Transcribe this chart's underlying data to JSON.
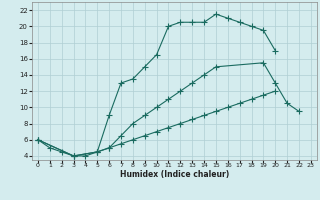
{
  "xlabel": "Humidex (Indice chaleur)",
  "bg_color": "#d4ecee",
  "grid_color": "#b0cfd3",
  "line_color": "#1a6b60",
  "xlim": [
    -0.5,
    23.5
  ],
  "ylim": [
    3.5,
    23
  ],
  "xticks": [
    0,
    1,
    2,
    3,
    4,
    5,
    6,
    7,
    8,
    9,
    10,
    11,
    12,
    13,
    14,
    15,
    16,
    17,
    18,
    19,
    20,
    21,
    22,
    23
  ],
  "yticks": [
    4,
    6,
    8,
    10,
    12,
    14,
    16,
    18,
    20,
    22
  ],
  "curve1_x": [
    0,
    1,
    2,
    3,
    4,
    5,
    6,
    7,
    8,
    9,
    10,
    11,
    12,
    13,
    14,
    15,
    16,
    17,
    18,
    19,
    20
  ],
  "curve1_y": [
    6,
    5,
    4.5,
    4,
    4,
    4.5,
    9,
    13,
    13.5,
    15,
    16.5,
    20,
    20.5,
    20.5,
    20.5,
    21.5,
    21,
    20.5,
    20,
    19.5,
    17
  ],
  "curve2_x": [
    0,
    3,
    5,
    6,
    7,
    8,
    9,
    10,
    11,
    12,
    13,
    14,
    15,
    19,
    20,
    21,
    22
  ],
  "curve2_y": [
    6,
    4,
    4.5,
    5,
    6.5,
    8,
    9,
    10,
    11,
    12,
    13,
    14,
    15,
    15.5,
    13,
    10.5,
    9.5
  ],
  "curve3_x": [
    0,
    3,
    5,
    6,
    7,
    8,
    9,
    10,
    11,
    12,
    13,
    14,
    15,
    16,
    17,
    18,
    19,
    20,
    21,
    22
  ],
  "curve3_y": [
    6,
    4,
    4.5,
    5,
    5.5,
    6,
    6.5,
    7,
    7.5,
    8,
    8.5,
    9,
    9.5,
    10,
    10.5,
    11,
    11.5,
    12,
    null,
    null
  ]
}
